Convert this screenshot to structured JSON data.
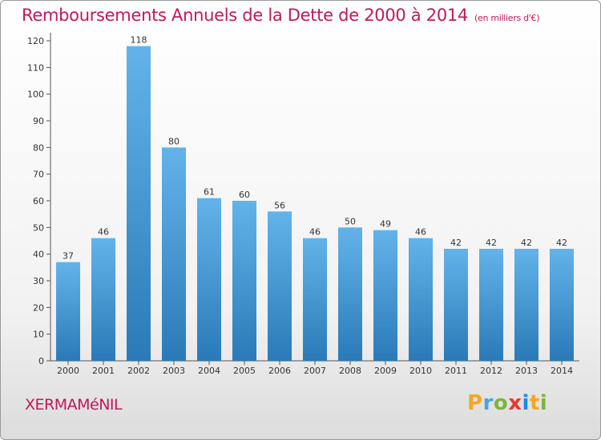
{
  "header": {
    "title": "Remboursements Annuels de la Dette de 2000 à 2014",
    "subtitle": "(en milliers d'€)"
  },
  "footer": {
    "commune": "XERMAMéNIL",
    "brand_letters": [
      "P",
      "r",
      "o",
      "x",
      "i",
      "t",
      "i"
    ]
  },
  "colors": {
    "title": "#c2185b",
    "bar_top": "#63b3ea",
    "bar_bottom": "#2a7ab8"
  },
  "chart_data": {
    "type": "bar",
    "title": "Remboursements Annuels de la Dette de 2000 à 2014",
    "subtitle": "(en milliers d'€)",
    "categories": [
      "2000",
      "2001",
      "2002",
      "2003",
      "2004",
      "2005",
      "2006",
      "2007",
      "2008",
      "2009",
      "2010",
      "2011",
      "2012",
      "2013",
      "2014"
    ],
    "values": [
      37,
      46,
      118,
      80,
      61,
      60,
      56,
      46,
      50,
      49,
      46,
      42,
      42,
      42,
      42
    ],
    "data_labels": [
      "37",
      "46",
      "118",
      "80",
      "61",
      "60",
      "56",
      "46",
      "50",
      "49",
      "46",
      "42",
      "42",
      "42",
      "42"
    ],
    "ylim": [
      0,
      120
    ],
    "yticks": [
      0,
      10,
      20,
      30,
      40,
      50,
      60,
      70,
      80,
      90,
      100,
      110,
      120
    ],
    "grid": false,
    "legend": "none"
  }
}
